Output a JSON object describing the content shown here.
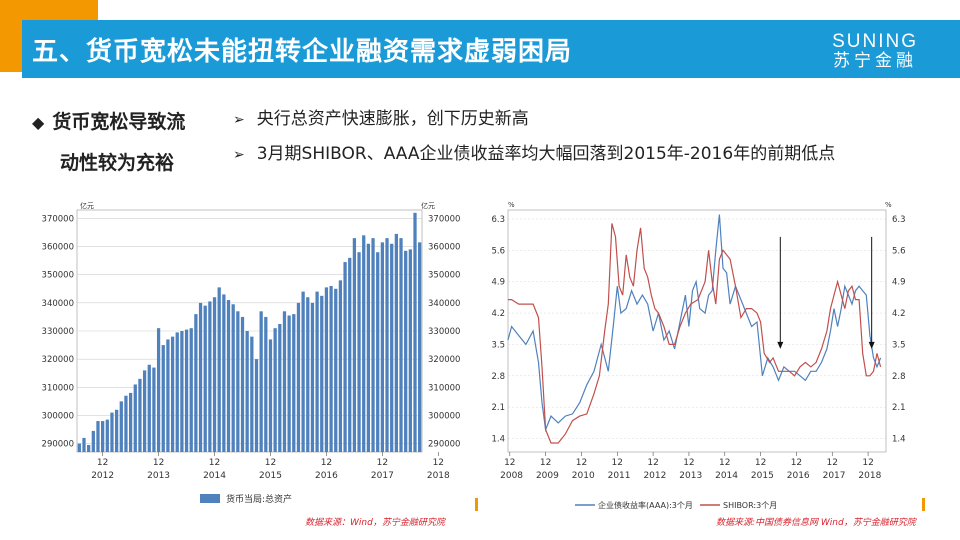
{
  "header": {
    "title": "五、货币宽松未能扭转企业融资需求虚弱困局",
    "brand_en": "SUNING",
    "brand_cn": "苏宁金融"
  },
  "side_heading": [
    "货币宽松导致流",
    "动性较为充裕"
  ],
  "bullets": [
    "央行总资产快速膨胀，创下历史新高",
    "3月期SHIBOR、AAA企业债收益率均大幅回落到2015年-2016年的前期低点"
  ],
  "left_source": "数据来源：Wind，苏宁金融研究院",
  "right_source": "数据来源:中国债券信息网 Wind，苏宁金融研究院",
  "chart_data": [
    {
      "type": "bar",
      "unit_left": "亿元",
      "unit_right": "亿元",
      "ylim": [
        287000,
        373000
      ],
      "yticks": [
        "290000",
        "300000",
        "310000",
        "320000",
        "330000",
        "340000",
        "350000",
        "360000",
        "370000"
      ],
      "x_month_labels": [
        "12",
        "12",
        "12",
        "12",
        "12",
        "12",
        "12"
      ],
      "x_year_labels": [
        "2012",
        "2013",
        "2014",
        "2015",
        "2016",
        "2017",
        "2018"
      ],
      "legend": "货币当局:总资产",
      "color": "#4f81bd",
      "grid": true,
      "values": [
        290000,
        292000,
        289500,
        294500,
        298000,
        298000,
        298500,
        301000,
        302000,
        305000,
        307000,
        308000,
        311000,
        313000,
        316000,
        318000,
        317000,
        331000,
        325000,
        327000,
        328000,
        329500,
        330000,
        330500,
        331000,
        336000,
        340000,
        339000,
        340500,
        342000,
        345500,
        343000,
        341000,
        339500,
        337000,
        335000,
        330000,
        328000,
        320000,
        337000,
        335000,
        327000,
        331000,
        332500,
        337000,
        335500,
        336000,
        340000,
        344000,
        342000,
        340000,
        344000,
        342500,
        345500,
        346000,
        345000,
        348000,
        354500,
        356000,
        363000,
        358000,
        364000,
        361000,
        363000,
        358000,
        361500,
        363000,
        361000,
        364500,
        363000,
        358500,
        359000,
        372000,
        361500
      ],
      "x_tick_index": [
        5,
        17,
        29,
        41,
        53,
        65,
        77
      ]
    },
    {
      "type": "line",
      "unit_left": "%",
      "unit_right": "%",
      "ylim": [
        1.1,
        6.5
      ],
      "yticks": [
        "1.4",
        "2.1",
        "2.8",
        "3.5",
        "4.2",
        "4.9",
        "5.6",
        "6.3"
      ],
      "x_month_labels": [
        "12",
        "12",
        "12",
        "12",
        "12",
        "12",
        "12",
        "12",
        "12",
        "12",
        "12"
      ],
      "x_year_labels": [
        "2008",
        "2009",
        "2010",
        "2011",
        "2012",
        "2013",
        "2014",
        "2015",
        "2016",
        "2017",
        "2018"
      ],
      "grid": true,
      "series": [
        {
          "name": "企业债收益率(AAA):3个月",
          "color": "#4f81bd",
          "x": [
            2007.9,
            2008.0,
            2008.2,
            2008.4,
            2008.6,
            2008.75,
            2008.85,
            2008.95,
            2009.1,
            2009.3,
            2009.5,
            2009.7,
            2009.9,
            2010.1,
            2010.3,
            2010.5,
            2010.7,
            2010.85,
            2010.95,
            2011.05,
            2011.2,
            2011.35,
            2011.5,
            2011.65,
            2011.8,
            2011.95,
            2012.1,
            2012.25,
            2012.4,
            2012.55,
            2012.7,
            2012.85,
            2012.95,
            2013.05,
            2013.15,
            2013.25,
            2013.4,
            2013.5,
            2013.6,
            2013.7,
            2013.8,
            2013.9,
            2014.0,
            2014.1,
            2014.25,
            2014.4,
            2014.55,
            2014.7,
            2014.85,
            2015.0,
            2015.15,
            2015.3,
            2015.45,
            2015.6,
            2015.75,
            2015.9,
            2016.05,
            2016.2,
            2016.35,
            2016.5,
            2016.65,
            2016.8,
            2016.9,
            2017.0,
            2017.1,
            2017.2,
            2017.3,
            2017.4,
            2017.5,
            2017.6,
            2017.7,
            2017.8,
            2017.9,
            2018.0,
            2018.1,
            2018.2,
            2018.3
          ],
          "y": [
            3.6,
            3.9,
            3.7,
            3.5,
            3.8,
            3.1,
            2.2,
            1.6,
            1.9,
            1.75,
            1.9,
            1.95,
            2.2,
            2.6,
            2.9,
            3.5,
            2.9,
            4.0,
            4.8,
            4.2,
            4.3,
            4.7,
            4.4,
            4.6,
            4.4,
            3.8,
            4.2,
            3.6,
            3.8,
            3.4,
            4.0,
            4.6,
            3.9,
            4.7,
            4.9,
            4.3,
            4.2,
            4.6,
            4.7,
            5.6,
            6.4,
            5.2,
            5.1,
            4.4,
            4.8,
            4.5,
            4.2,
            3.9,
            4.0,
            2.8,
            3.2,
            3.0,
            2.7,
            3.0,
            2.9,
            2.9,
            2.8,
            2.7,
            2.9,
            2.9,
            3.1,
            3.4,
            3.8,
            4.3,
            3.9,
            4.3,
            4.8,
            4.6,
            4.4,
            4.7,
            4.8,
            4.7,
            4.6,
            3.7,
            3.2,
            3.0,
            3.2
          ]
        },
        {
          "name": "SHIBOR:3个月",
          "color": "#c0504d",
          "x": [
            2007.9,
            2008.0,
            2008.2,
            2008.4,
            2008.6,
            2008.75,
            2008.85,
            2008.95,
            2009.1,
            2009.3,
            2009.5,
            2009.7,
            2009.9,
            2010.1,
            2010.3,
            2010.45,
            2010.6,
            2010.7,
            2010.8,
            2010.9,
            2011.0,
            2011.1,
            2011.2,
            2011.3,
            2011.4,
            2011.5,
            2011.6,
            2011.7,
            2011.8,
            2011.9,
            2012.0,
            2012.1,
            2012.25,
            2012.4,
            2012.55,
            2012.7,
            2012.85,
            2013.0,
            2013.2,
            2013.4,
            2013.5,
            2013.6,
            2013.7,
            2013.8,
            2013.9,
            2014.0,
            2014.1,
            2014.25,
            2014.4,
            2014.55,
            2014.7,
            2014.85,
            2014.95,
            2015.05,
            2015.2,
            2015.3,
            2015.45,
            2015.6,
            2015.75,
            2015.9,
            2016.05,
            2016.2,
            2016.35,
            2016.5,
            2016.65,
            2016.8,
            2016.9,
            2017.0,
            2017.1,
            2017.2,
            2017.3,
            2017.4,
            2017.5,
            2017.6,
            2017.7,
            2017.8,
            2017.9,
            2018.0,
            2018.1,
            2018.2,
            2018.3
          ],
          "y": [
            4.5,
            4.5,
            4.4,
            4.4,
            4.4,
            4.1,
            3.0,
            1.6,
            1.3,
            1.3,
            1.5,
            1.8,
            1.9,
            1.95,
            2.4,
            2.8,
            3.8,
            4.4,
            6.2,
            5.9,
            4.8,
            4.6,
            5.5,
            5.0,
            4.8,
            5.6,
            6.1,
            5.2,
            5.0,
            4.6,
            4.3,
            4.2,
            3.9,
            3.5,
            3.5,
            3.9,
            4.2,
            4.4,
            4.5,
            4.9,
            5.6,
            4.9,
            4.4,
            5.4,
            5.6,
            5.5,
            5.4,
            4.8,
            4.1,
            4.3,
            4.3,
            4.2,
            4.0,
            3.3,
            3.1,
            3.2,
            2.9,
            2.9,
            2.9,
            2.8,
            3.0,
            3.1,
            3.0,
            3.1,
            3.4,
            3.8,
            4.3,
            4.6,
            4.9,
            4.6,
            4.3,
            4.7,
            4.8,
            4.5,
            4.5,
            3.3,
            2.8,
            2.8,
            2.9,
            3.3,
            3.0
          ]
        }
      ],
      "arrows": [
        {
          "x": 2015.5,
          "y_from": 5.9,
          "y_to": 3.4
        },
        {
          "x": 2018.05,
          "y_from": 5.9,
          "y_to": 3.4
        }
      ]
    }
  ]
}
